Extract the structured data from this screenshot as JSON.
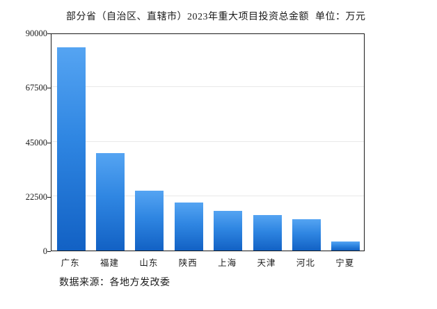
{
  "chart_data": {
    "type": "bar",
    "title": "部分省（自治区、直辖市）2023年重大项目投资总金额",
    "unit_label": "单位：万元",
    "source_note": "数据来源：各地方发改委",
    "categories": [
      "广东",
      "福建",
      "山东",
      "陕西",
      "上海",
      "天津",
      "河北",
      "宁夏"
    ],
    "values": [
      84000,
      40300,
      24700,
      19800,
      16500,
      14800,
      12900,
      3700
    ],
    "xlabel": "",
    "ylabel": "",
    "ylim": [
      0,
      90000
    ],
    "yticks": [
      0,
      22500,
      45000,
      67500,
      90000
    ],
    "grid": "horizontal",
    "legend": "none",
    "colors": {
      "bar_gradient_top": "#55a4f2",
      "bar_gradient_bottom": "#1261c4",
      "gridline": "#e8e8e8",
      "frame": "#1a1a1a",
      "text": "#1a1a1a",
      "background": "#ffffff"
    }
  }
}
